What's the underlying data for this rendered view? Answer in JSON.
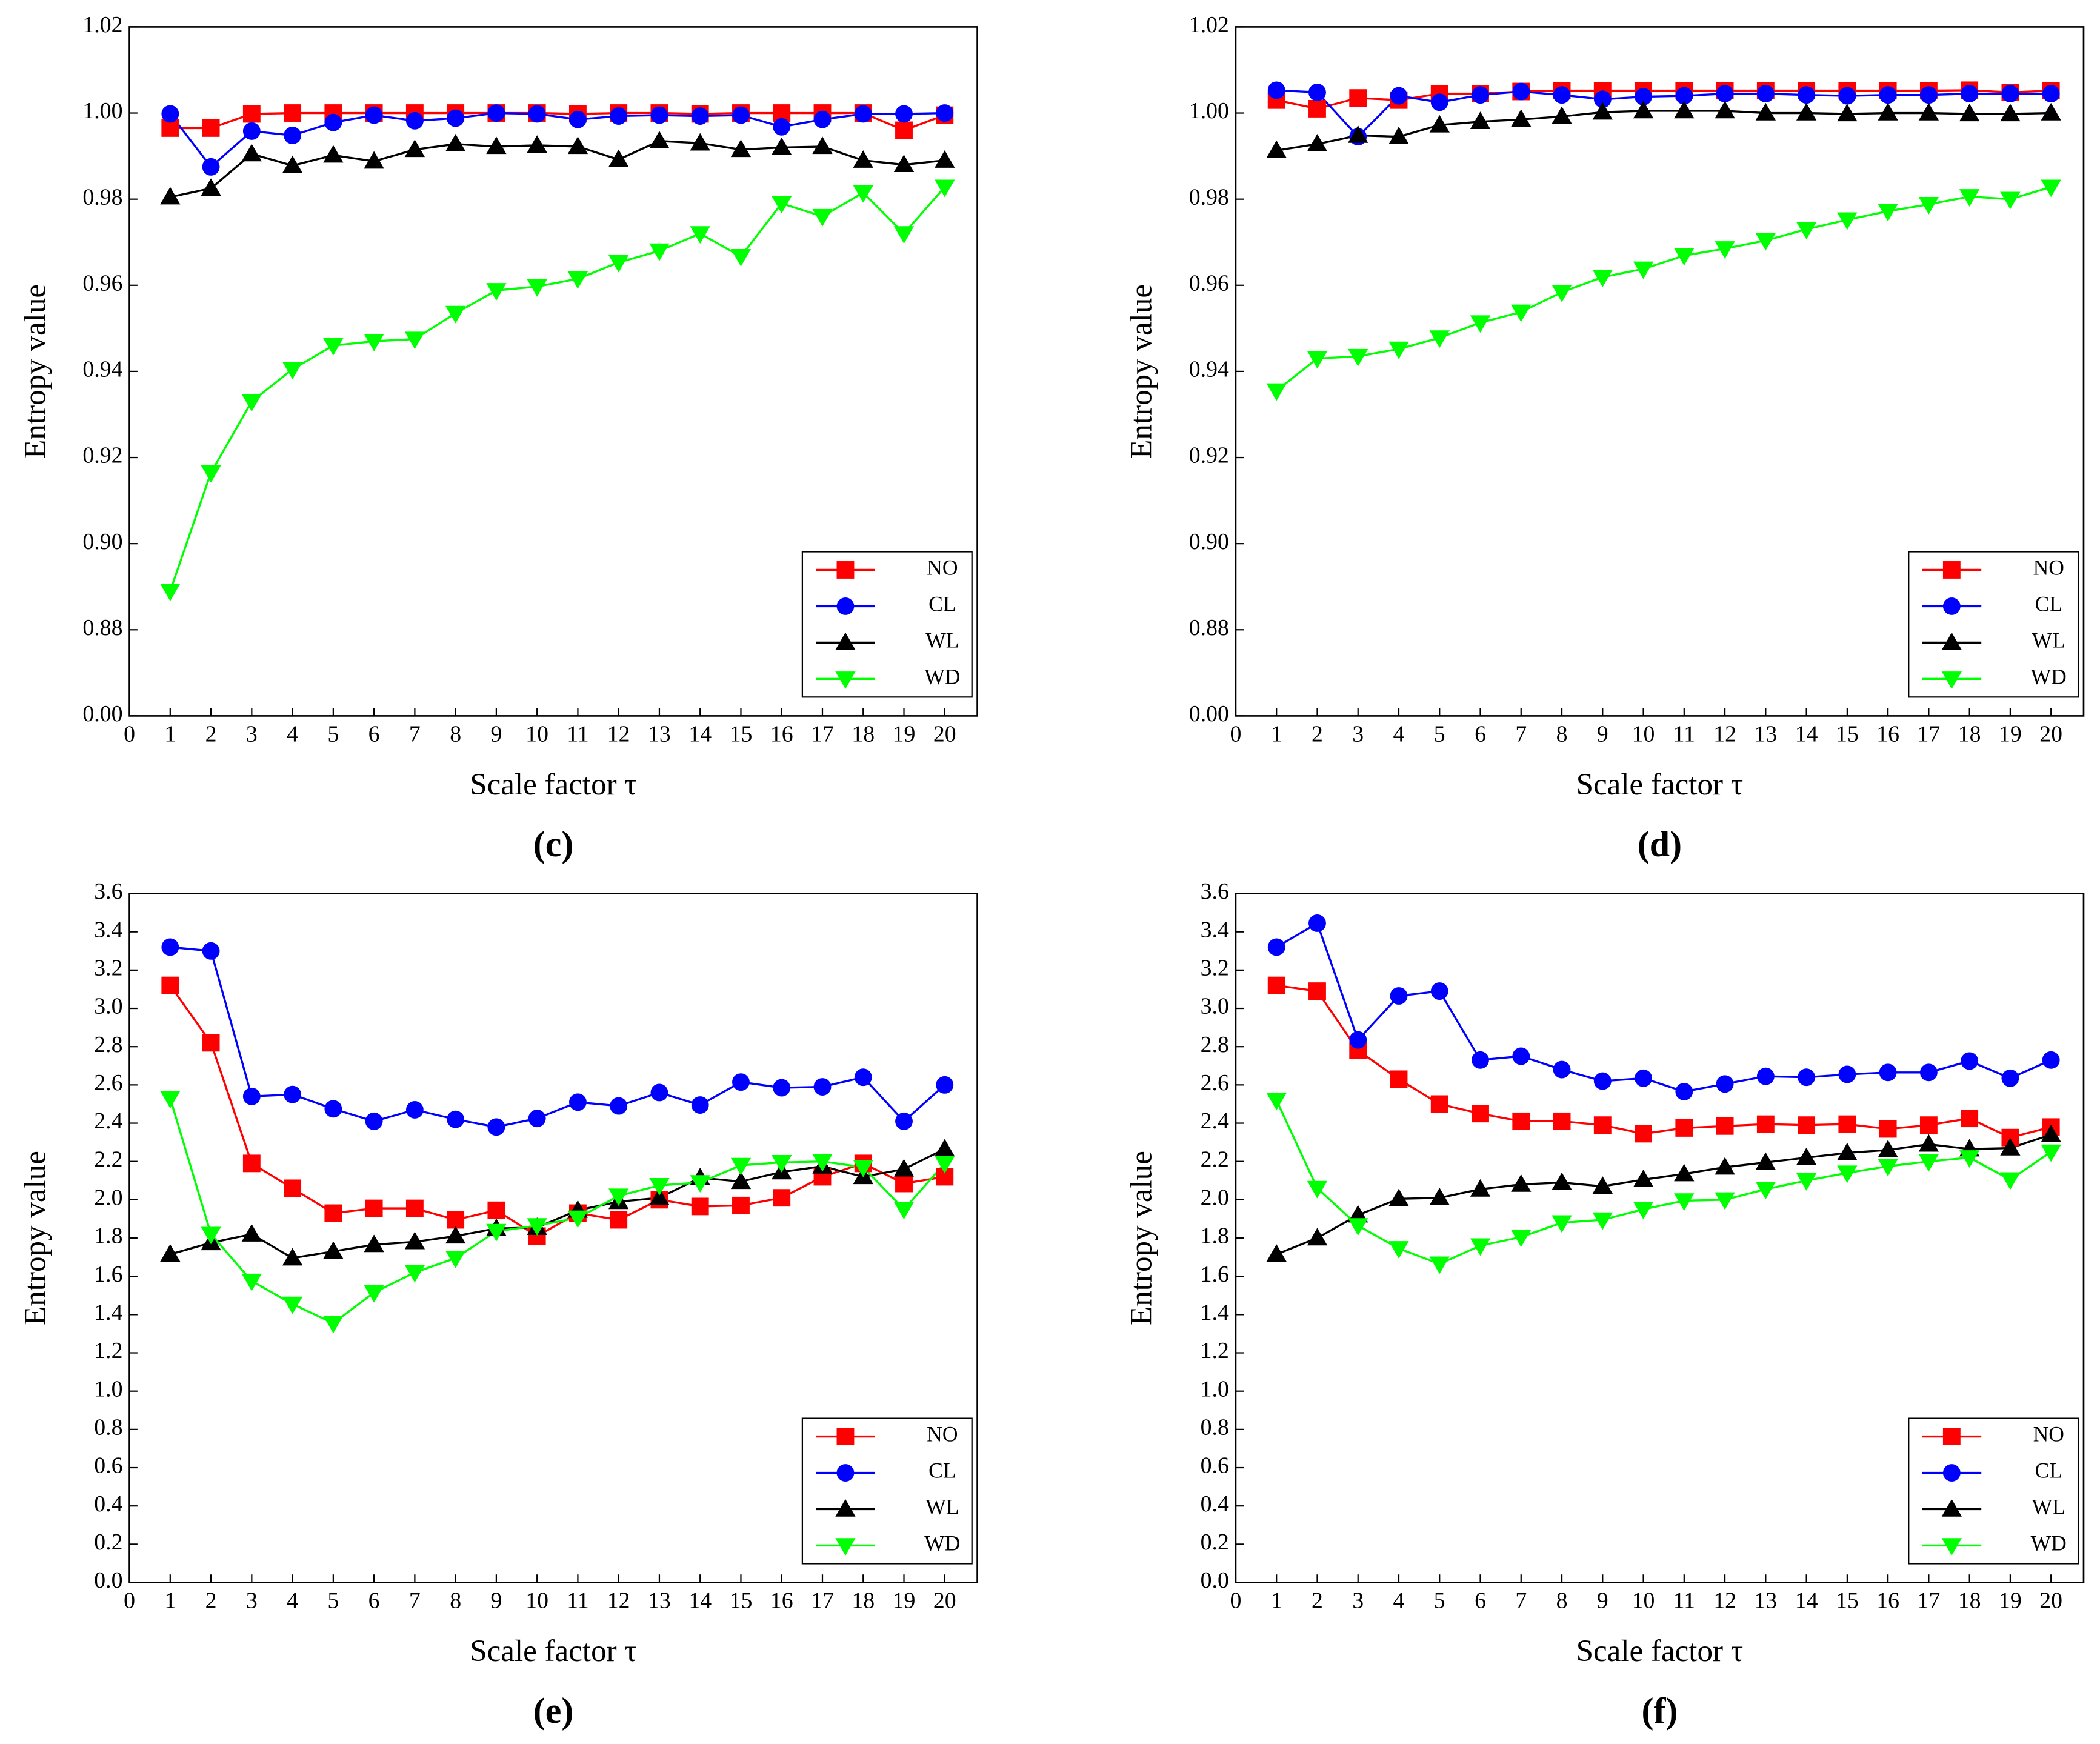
{
  "chart_data": [
    {
      "type": "line",
      "caption": "(c)",
      "xlabel": "Scale factor τ",
      "ylabel": "Entropy value",
      "x": [
        1,
        2,
        3,
        4,
        5,
        6,
        7,
        8,
        9,
        10,
        11,
        12,
        13,
        14,
        15,
        16,
        17,
        18,
        19,
        20
      ],
      "xlim": [
        0,
        20.8
      ],
      "xticks": [
        0,
        1,
        2,
        3,
        4,
        5,
        6,
        7,
        8,
        9,
        10,
        11,
        12,
        13,
        14,
        15,
        16,
        17,
        18,
        19,
        20
      ],
      "ylim": [
        0.86,
        1.02
      ],
      "y_axis_break": true,
      "yticks": [
        {
          "value": 0,
          "label": "0.00"
        },
        0.88,
        {
          "value": 0.9,
          "label": "0.90"
        },
        0.92,
        0.94,
        0.96,
        0.98,
        {
          "value": 1,
          "label": "1.00"
        },
        1.02
      ],
      "legend": "lower right",
      "series": [
        {
          "name": "NO",
          "color": "#ff0000",
          "marker": "square",
          "values": [
            0.9965,
            0.9965,
            0.9998,
            1.0,
            1.0,
            1.0,
            1.0,
            1.0,
            1.0,
            1.0,
            0.9998,
            1.0,
            1.0,
            0.9998,
            1.0,
            1.0,
            1.0,
            1.0,
            0.996,
            0.9995
          ]
        },
        {
          "name": "CL",
          "color": "#0000ff",
          "marker": "circle",
          "values": [
            0.9998,
            0.9875,
            0.9958,
            0.9948,
            0.9978,
            0.9995,
            0.9982,
            0.9988,
            1.0,
            0.9998,
            0.9985,
            0.9993,
            0.9995,
            0.9993,
            0.9995,
            0.9968,
            0.9985,
            0.9998,
            0.9998,
            1.0
          ]
        },
        {
          "name": "WL",
          "color": "#000000",
          "marker": "triangle-up",
          "values": [
            0.9805,
            0.9825,
            0.9905,
            0.9878,
            0.9902,
            0.9888,
            0.9915,
            0.9928,
            0.9922,
            0.9925,
            0.9922,
            0.9892,
            0.9935,
            0.993,
            0.9915,
            0.992,
            0.9922,
            0.989,
            0.988,
            0.989
          ]
        },
        {
          "name": "WD",
          "color": "#00ff00",
          "marker": "triangle-down",
          "values": [
            0.889,
            0.9165,
            0.933,
            0.9405,
            0.946,
            0.947,
            0.9475,
            0.9535,
            0.9588,
            0.9597,
            0.9615,
            0.9653,
            0.968,
            0.972,
            0.9667,
            0.979,
            0.976,
            0.9815,
            0.972,
            0.9828
          ]
        }
      ]
    },
    {
      "type": "line",
      "caption": "(d)",
      "xlabel": "Scale factor τ",
      "ylabel": "Entropy value",
      "x": [
        1,
        2,
        3,
        4,
        5,
        6,
        7,
        8,
        9,
        10,
        11,
        12,
        13,
        14,
        15,
        16,
        17,
        18,
        19,
        20
      ],
      "xlim": [
        0,
        20.8
      ],
      "xticks": [
        0,
        1,
        2,
        3,
        4,
        5,
        6,
        7,
        8,
        9,
        10,
        11,
        12,
        13,
        14,
        15,
        16,
        17,
        18,
        19,
        20
      ],
      "ylim": [
        0.86,
        1.02
      ],
      "y_axis_break": true,
      "yticks": [
        {
          "value": 0,
          "label": "0.00"
        },
        0.88,
        {
          "value": 0.9,
          "label": "0.90"
        },
        0.92,
        0.94,
        0.96,
        0.98,
        {
          "value": 1,
          "label": "1.00"
        },
        1.02
      ],
      "legend": "lower right",
      "series": [
        {
          "name": "NO",
          "color": "#ff0000",
          "marker": "square",
          "values": [
            1.003,
            1.001,
            1.0035,
            1.003,
            1.0045,
            1.0045,
            1.005,
            1.0052,
            1.0052,
            1.0052,
            1.0052,
            1.0052,
            1.0052,
            1.0052,
            1.0052,
            1.0052,
            1.0052,
            1.0053,
            1.0048,
            1.0052
          ]
        },
        {
          "name": "CL",
          "color": "#0000ff",
          "marker": "circle",
          "values": [
            1.0053,
            1.0048,
            0.9945,
            1.004,
            1.0025,
            1.0042,
            1.005,
            1.0042,
            1.0032,
            1.0038,
            1.004,
            1.0045,
            1.0045,
            1.0042,
            1.004,
            1.0042,
            1.0042,
            1.0045,
            1.0045,
            1.0045
          ]
        },
        {
          "name": "WL",
          "color": "#000000",
          "marker": "triangle-up",
          "values": [
            0.9913,
            0.9928,
            0.9948,
            0.9945,
            0.9972,
            0.998,
            0.9985,
            0.9992,
            1.0002,
            1.0005,
            1.0005,
            1.0005,
            1.0,
            1.0,
            0.9998,
            1.0,
            1.0,
            0.9998,
            0.9998,
            1.0
          ]
        },
        {
          "name": "WD",
          "color": "#00ff00",
          "marker": "triangle-down",
          "values": [
            0.9355,
            0.943,
            0.9435,
            0.9452,
            0.9478,
            0.9513,
            0.9538,
            0.9584,
            0.9619,
            0.9638,
            0.9669,
            0.9685,
            0.9704,
            0.973,
            0.9752,
            0.9772,
            0.9788,
            0.9806,
            0.98,
            0.9828
          ]
        }
      ]
    },
    {
      "type": "line",
      "caption": "(e)",
      "xlabel": "Scale factor τ",
      "ylabel": "Entropy value",
      "x": [
        1,
        2,
        3,
        4,
        5,
        6,
        7,
        8,
        9,
        10,
        11,
        12,
        13,
        14,
        15,
        16,
        17,
        18,
        19,
        20
      ],
      "xlim": [
        0,
        20.8
      ],
      "xticks": [
        0,
        1,
        2,
        3,
        4,
        5,
        6,
        7,
        8,
        9,
        10,
        11,
        12,
        13,
        14,
        15,
        16,
        17,
        18,
        19,
        20
      ],
      "ylim": [
        0,
        3.6
      ],
      "y_axis_break": false,
      "yticks": [
        {
          "value": 0,
          "label": "0.0"
        },
        0.2,
        0.4,
        0.6,
        0.8,
        {
          "value": 1,
          "label": "1.0"
        },
        1.2,
        1.4,
        1.6,
        1.8,
        {
          "value": 2,
          "label": "2.0"
        },
        2.2,
        2.4,
        2.6,
        2.8,
        {
          "value": 3,
          "label": "3.0"
        },
        3.2,
        3.4,
        3.6
      ],
      "legend": "lower right",
      "series": [
        {
          "name": "NO",
          "color": "#ff0000",
          "marker": "square",
          "values": [
            3.12,
            2.82,
            2.19,
            2.06,
            1.93,
            1.955,
            1.955,
            1.895,
            1.945,
            1.81,
            1.93,
            1.895,
            2.0,
            1.965,
            1.97,
            2.01,
            2.12,
            2.19,
            2.085,
            2.12
          ]
        },
        {
          "name": "CL",
          "color": "#0000ff",
          "marker": "circle",
          "values": [
            3.32,
            3.3,
            2.54,
            2.55,
            2.475,
            2.41,
            2.47,
            2.42,
            2.38,
            2.425,
            2.51,
            2.49,
            2.56,
            2.495,
            2.615,
            2.585,
            2.59,
            2.64,
            2.41,
            2.6
          ]
        },
        {
          "name": "WL",
          "color": "#000000",
          "marker": "triangle-up",
          "values": [
            1.715,
            1.775,
            1.82,
            1.695,
            1.73,
            1.765,
            1.78,
            1.81,
            1.85,
            1.855,
            1.945,
            1.99,
            2.01,
            2.115,
            2.095,
            2.145,
            2.175,
            2.12,
            2.16,
            2.265
          ]
        },
        {
          "name": "WD",
          "color": "#00ff00",
          "marker": "triangle-down",
          "values": [
            2.53,
            1.82,
            1.575,
            1.455,
            1.355,
            1.515,
            1.62,
            1.695,
            1.835,
            1.865,
            1.905,
            2.02,
            2.075,
            2.09,
            2.18,
            2.195,
            2.2,
            2.17,
            1.95,
            2.19
          ]
        }
      ]
    },
    {
      "type": "line",
      "caption": "(f)",
      "xlabel": "Scale factor τ",
      "ylabel": "Entropy value",
      "x": [
        1,
        2,
        3,
        4,
        5,
        6,
        7,
        8,
        9,
        10,
        11,
        12,
        13,
        14,
        15,
        16,
        17,
        18,
        19,
        20
      ],
      "xlim": [
        0,
        20.8
      ],
      "xticks": [
        0,
        1,
        2,
        3,
        4,
        5,
        6,
        7,
        8,
        9,
        10,
        11,
        12,
        13,
        14,
        15,
        16,
        17,
        18,
        19,
        20
      ],
      "ylim": [
        0,
        3.6
      ],
      "y_axis_break": false,
      "yticks": [
        {
          "value": 0,
          "label": "0.0"
        },
        0.2,
        0.4,
        0.6,
        0.8,
        {
          "value": 1,
          "label": "1.0"
        },
        1.2,
        1.4,
        1.6,
        1.8,
        {
          "value": 2,
          "label": "2.0"
        },
        2.2,
        2.4,
        2.6,
        2.8,
        {
          "value": 3,
          "label": "3.0"
        },
        3.2,
        3.4,
        3.6
      ],
      "legend": "lower right",
      "series": [
        {
          "name": "NO",
          "color": "#ff0000",
          "marker": "square",
          "values": [
            3.12,
            3.09,
            2.78,
            2.63,
            2.5,
            2.45,
            2.41,
            2.41,
            2.39,
            2.345,
            2.375,
            2.385,
            2.395,
            2.39,
            2.395,
            2.37,
            2.39,
            2.425,
            2.325,
            2.38
          ]
        },
        {
          "name": "CL",
          "color": "#0000ff",
          "marker": "circle",
          "values": [
            3.32,
            3.445,
            2.835,
            3.065,
            3.09,
            2.73,
            2.75,
            2.68,
            2.62,
            2.635,
            2.565,
            2.605,
            2.645,
            2.64,
            2.655,
            2.665,
            2.665,
            2.725,
            2.635,
            2.73
          ]
        },
        {
          "name": "WL",
          "color": "#000000",
          "marker": "triangle-up",
          "values": [
            1.715,
            1.8,
            1.92,
            2.005,
            2.01,
            2.055,
            2.08,
            2.09,
            2.07,
            2.105,
            2.135,
            2.17,
            2.195,
            2.22,
            2.245,
            2.26,
            2.29,
            2.265,
            2.27,
            2.34
          ]
        },
        {
          "name": "WD",
          "color": "#00ff00",
          "marker": "triangle-down",
          "values": [
            2.52,
            2.06,
            1.865,
            1.745,
            1.665,
            1.76,
            1.805,
            1.88,
            1.895,
            1.95,
            1.995,
            2.0,
            2.055,
            2.1,
            2.14,
            2.175,
            2.2,
            2.22,
            2.105,
            2.25
          ]
        }
      ]
    }
  ]
}
